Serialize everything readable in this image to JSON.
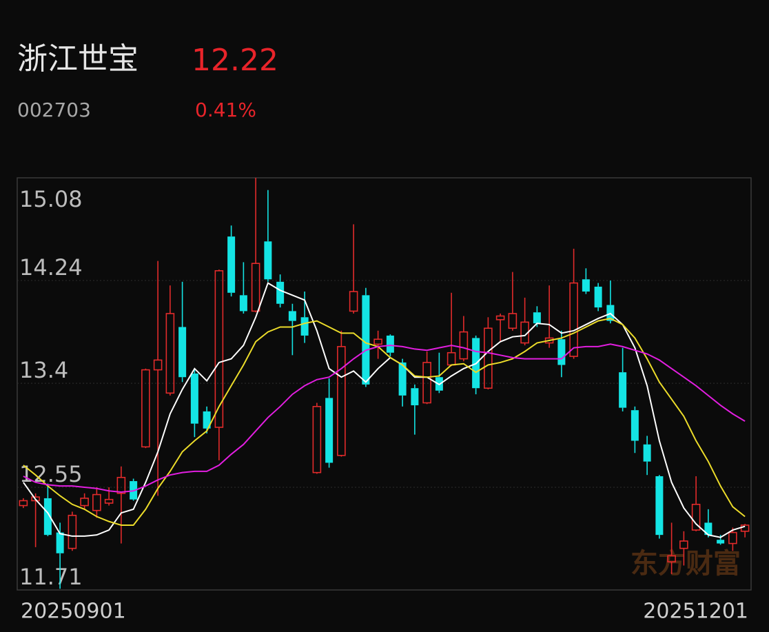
{
  "header": {
    "title": "浙江世宝",
    "price": "12.22",
    "code": "002703",
    "change": "0.41%"
  },
  "watermark": "东方财富",
  "chart_data": {
    "type": "candlestick",
    "categories": [
      "20250901",
      null,
      null,
      null,
      null,
      null,
      null,
      null,
      null,
      null,
      null,
      null,
      null,
      null,
      null,
      null,
      null,
      null,
      null,
      null,
      null,
      null,
      null,
      null,
      null,
      null,
      null,
      null,
      null,
      null,
      null,
      null,
      null,
      null,
      null,
      null,
      null,
      null,
      null,
      null,
      null,
      null,
      null,
      null,
      null,
      null,
      null,
      null,
      null,
      null,
      null,
      null,
      null,
      null,
      null,
      null,
      null,
      null,
      null,
      "20251201"
    ],
    "open": [
      12.4,
      12.44,
      12.46,
      12.18,
      12.05,
      12.4,
      12.36,
      12.42,
      12.5,
      12.6,
      12.88,
      13.51,
      13.32,
      13.86,
      13.48,
      13.17,
      13.04,
      14.6,
      14.12,
      13.99,
      14.56,
      14.23,
      13.99,
      13.94,
      12.67,
      13.28,
      12.81,
      13.99,
      14.12,
      13.72,
      13.79,
      13.57,
      13.36,
      13.24,
      13.45,
      13.55,
      13.6,
      13.77,
      13.36,
      13.92,
      13.85,
      13.73,
      13.98,
      13.73,
      13.76,
      13.62,
      14.25,
      14.19,
      14.04,
      13.49,
      13.18,
      12.9,
      12.64,
      11.94,
      12.05,
      12.2,
      12.26,
      12.12,
      12.09,
      12.19
    ],
    "high": [
      12.46,
      12.5,
      12.58,
      12.26,
      12.35,
      12.5,
      12.55,
      12.55,
      12.72,
      12.62,
      13.52,
      14.4,
      14.2,
      14.23,
      13.52,
      13.21,
      14.33,
      14.69,
      14.39,
      15.08,
      14.98,
      14.29,
      14.05,
      14.15,
      13.24,
      13.44,
      13.83,
      14.7,
      14.18,
      13.83,
      13.8,
      13.6,
      13.39,
      13.66,
      13.65,
      14.14,
      13.95,
      13.79,
      13.94,
      13.97,
      14.31,
      14.1,
      14.03,
      14.2,
      13.83,
      14.5,
      14.34,
      14.22,
      14.24,
      13.69,
      13.21,
      12.97,
      12.65,
      12.26,
      12.19,
      12.64,
      12.37,
      12.16,
      12.22,
      12.25
    ],
    "low": [
      12.38,
      12.06,
      12.15,
      11.72,
      12.03,
      12.37,
      12.3,
      12.4,
      12.09,
      12.44,
      12.87,
      12.48,
      13.3,
      13.41,
      12.96,
      12.99,
      12.77,
      14.11,
      13.97,
      13.98,
      14.23,
      14.02,
      13.63,
      13.73,
      12.66,
      12.71,
      12.8,
      13.97,
      13.37,
      13.6,
      13.62,
      13.21,
      12.98,
      13.23,
      13.32,
      13.54,
      13.58,
      13.31,
      13.35,
      13.74,
      13.83,
      13.71,
      13.86,
      13.69,
      13.45,
      13.6,
      14.13,
      13.99,
      13.89,
      13.17,
      12.83,
      12.65,
      12.13,
      11.84,
      11.91,
      12.19,
      12.14,
      12.08,
      12.03,
      12.14
    ],
    "close": [
      12.44,
      12.47,
      12.16,
      12.01,
      12.32,
      12.46,
      12.49,
      12.45,
      12.63,
      12.45,
      13.51,
      13.59,
      13.97,
      13.45,
      13.07,
      13.03,
      14.32,
      14.14,
      13.99,
      14.38,
      14.25,
      14.05,
      13.91,
      13.79,
      13.21,
      12.75,
      13.7,
      14.15,
      13.39,
      13.76,
      13.65,
      13.3,
      13.22,
      13.57,
      13.34,
      13.65,
      13.82,
      13.36,
      13.85,
      13.95,
      13.97,
      13.9,
      13.89,
      13.77,
      13.55,
      14.22,
      14.15,
      14.02,
      13.91,
      13.2,
      12.93,
      12.76,
      12.16,
      11.99,
      12.11,
      12.41,
      12.16,
      12.09,
      12.18,
      12.24
    ],
    "up_color": "#e32b2b",
    "down_color": "#14e4e4",
    "lines": [
      {
        "color": "#ffffff",
        "values": [
          12.59,
          12.45,
          12.34,
          12.17,
          12.15,
          12.15,
          12.16,
          12.2,
          12.34,
          12.37,
          12.59,
          12.84,
          13.15,
          13.35,
          13.52,
          13.42,
          13.57,
          13.6,
          13.71,
          13.94,
          14.22,
          14.16,
          14.12,
          14.08,
          13.83,
          13.52,
          13.45,
          13.5,
          13.41,
          13.52,
          13.61,
          13.55,
          13.45,
          13.45,
          13.39,
          13.46,
          13.52,
          13.56,
          13.66,
          13.74,
          13.78,
          13.79,
          13.89,
          13.88,
          13.81,
          13.83,
          13.88,
          13.93,
          13.97,
          13.88,
          13.69,
          13.38,
          12.93,
          12.59,
          12.38,
          12.25,
          12.16,
          12.14,
          12.2,
          12.23
        ]
      },
      {
        "color": "#ecdc2a",
        "values": [
          12.73,
          12.65,
          12.56,
          12.48,
          12.41,
          12.37,
          12.31,
          12.27,
          12.24,
          12.24,
          12.37,
          12.54,
          12.68,
          12.84,
          12.93,
          13.01,
          13.21,
          13.38,
          13.55,
          13.74,
          13.82,
          13.86,
          13.86,
          13.89,
          13.91,
          13.86,
          13.81,
          13.81,
          13.73,
          13.7,
          13.61,
          13.55,
          13.46,
          13.45,
          13.46,
          13.55,
          13.56,
          13.49,
          13.55,
          13.57,
          13.6,
          13.66,
          13.73,
          13.75,
          13.77,
          13.81,
          13.86,
          13.91,
          13.93,
          13.88,
          13.77,
          13.6,
          13.41,
          13.27,
          13.13,
          12.93,
          12.76,
          12.56,
          12.39,
          12.31
        ]
      },
      {
        "color": "#e21ee0",
        "values": [
          12.64,
          12.59,
          12.57,
          12.56,
          12.56,
          12.55,
          12.54,
          12.52,
          12.51,
          12.52,
          12.56,
          12.61,
          12.65,
          12.67,
          12.68,
          12.68,
          12.73,
          12.82,
          12.9,
          13.01,
          13.12,
          13.21,
          13.31,
          13.38,
          13.43,
          13.45,
          13.52,
          13.6,
          13.67,
          13.7,
          13.71,
          13.7,
          13.68,
          13.67,
          13.69,
          13.71,
          13.69,
          13.66,
          13.65,
          13.63,
          13.61,
          13.6,
          13.6,
          13.6,
          13.6,
          13.69,
          13.7,
          13.7,
          13.72,
          13.7,
          13.67,
          13.64,
          13.59,
          13.52,
          13.45,
          13.38,
          13.3,
          13.22,
          13.15,
          13.09
        ]
      }
    ],
    "ylim": [
      11.71,
      15.08
    ],
    "yticks": [
      15.08,
      14.24,
      13.4,
      {
        "value": 12.55,
        "label": "12.55"
      },
      11.71
    ],
    "grid": true
  }
}
